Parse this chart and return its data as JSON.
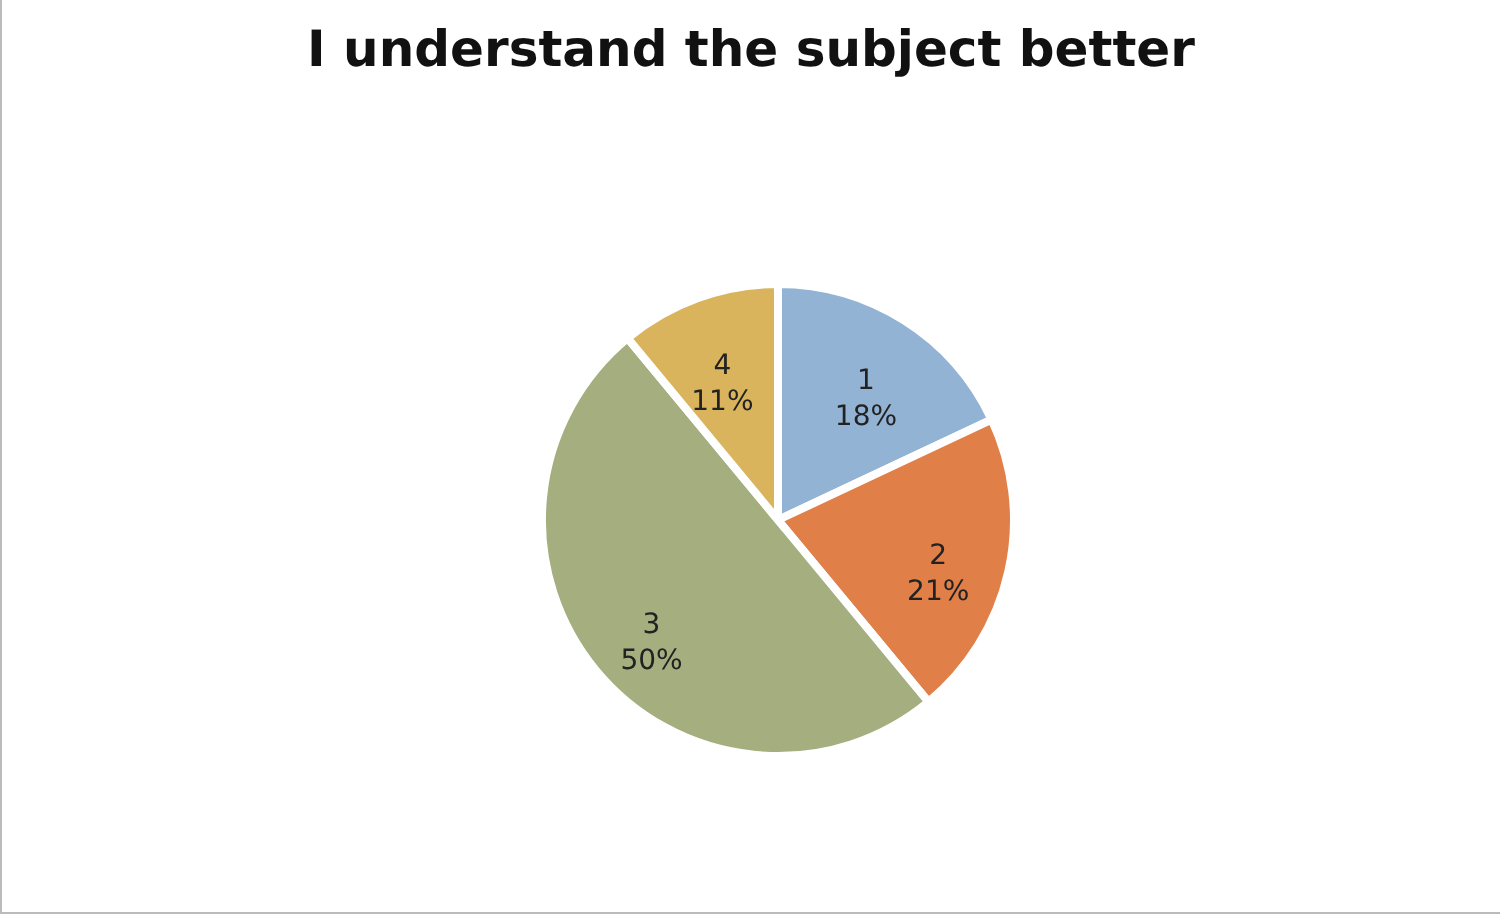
{
  "chart_data": {
    "type": "pie",
    "title": "I understand the subject better",
    "categories": [
      "1",
      "2",
      "3",
      "4"
    ],
    "values": [
      18,
      21,
      50,
      11
    ],
    "colors": [
      "#93b3d5",
      "#e07f48",
      "#a5ae7f",
      "#d9b45c"
    ],
    "value_labels": [
      "18%",
      "21%",
      "50%",
      "11%"
    ]
  }
}
